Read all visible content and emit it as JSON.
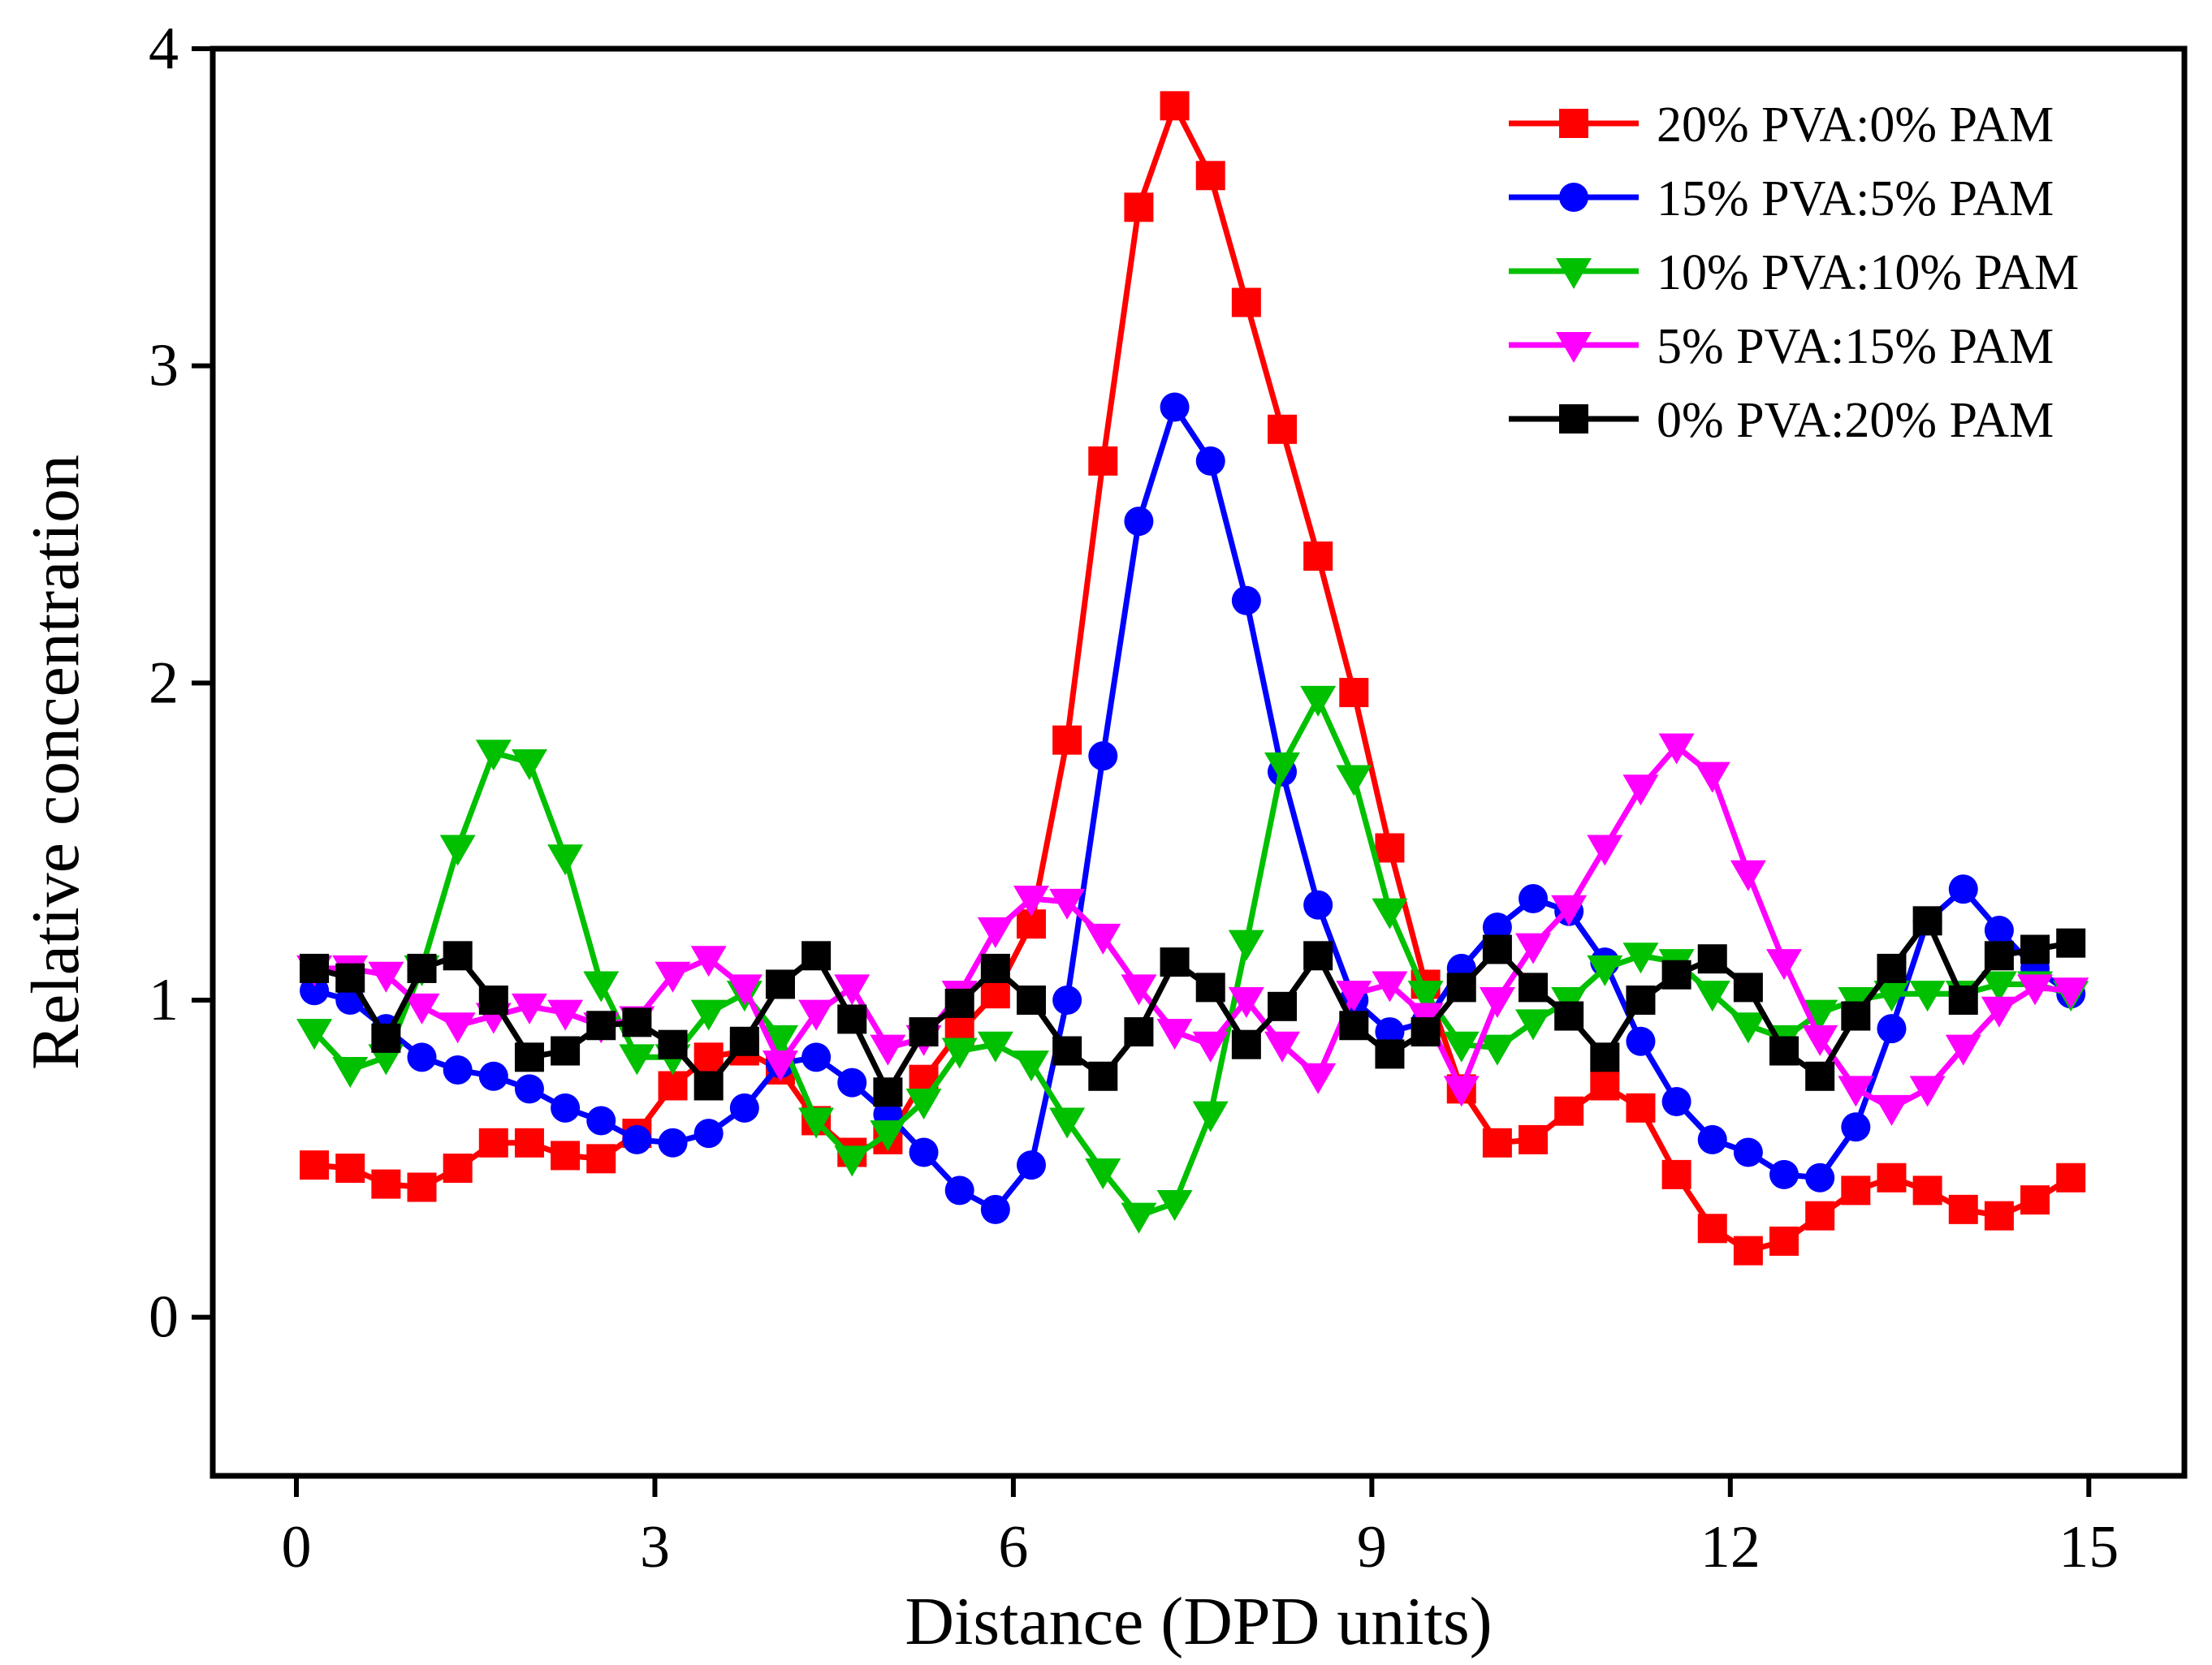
{
  "chart_data": {
    "type": "line",
    "title": "",
    "xlabel": "Distance (DPD units)",
    "ylabel": "Relative concentration",
    "xlim": [
      -0.7,
      15.8
    ],
    "ylim": [
      -0.5,
      4
    ],
    "xticks": [
      0,
      3,
      6,
      9,
      12,
      15
    ],
    "yticks": [
      0,
      1,
      2,
      3,
      4
    ],
    "grid": false,
    "legend_position": "top-right",
    "series": [
      {
        "name": "20% PVA:0% PAM",
        "color": "#ff0000",
        "marker": "square",
        "x": [
          0.15,
          0.45,
          0.75,
          1.05,
          1.35,
          1.65,
          1.95,
          2.25,
          2.55,
          2.85,
          3.15,
          3.45,
          3.75,
          4.05,
          4.35,
          4.65,
          4.95,
          5.25,
          5.55,
          5.85,
          6.15,
          6.45,
          6.75,
          7.05,
          7.35,
          7.65,
          7.95,
          8.25,
          8.55,
          8.85,
          9.15,
          9.45,
          9.75,
          10.05,
          10.35,
          10.65,
          10.95,
          11.25,
          11.55,
          11.85,
          12.15,
          12.45,
          12.75,
          13.05,
          13.35,
          13.65,
          13.95,
          14.25,
          14.55,
          14.85
        ],
        "y": [
          0.48,
          0.47,
          0.42,
          0.41,
          0.47,
          0.55,
          0.55,
          0.51,
          0.5,
          0.58,
          0.73,
          0.82,
          0.84,
          0.78,
          0.62,
          0.52,
          0.56,
          0.75,
          0.9,
          1.02,
          1.24,
          1.82,
          2.7,
          3.5,
          3.82,
          3.6,
          3.2,
          2.8,
          2.4,
          1.97,
          1.48,
          1.05,
          0.72,
          0.55,
          0.56,
          0.65,
          0.73,
          0.66,
          0.45,
          0.28,
          0.21,
          0.24,
          0.32,
          0.4,
          0.44,
          0.4,
          0.34,
          0.32,
          0.37,
          0.44
        ]
      },
      {
        "name": "15% PVA:5% PAM",
        "color": "#0000ff",
        "marker": "circle",
        "x": [
          0.15,
          0.45,
          0.75,
          1.05,
          1.35,
          1.65,
          1.95,
          2.25,
          2.55,
          2.85,
          3.15,
          3.45,
          3.75,
          4.05,
          4.35,
          4.65,
          4.95,
          5.25,
          5.55,
          5.85,
          6.15,
          6.45,
          6.75,
          7.05,
          7.35,
          7.65,
          7.95,
          8.25,
          8.55,
          8.85,
          9.15,
          9.45,
          9.75,
          10.05,
          10.35,
          10.65,
          10.95,
          11.25,
          11.55,
          11.85,
          12.15,
          12.45,
          12.75,
          13.05,
          13.35,
          13.65,
          13.95,
          14.25,
          14.55,
          14.85
        ],
        "y": [
          1.03,
          1.0,
          0.91,
          0.82,
          0.78,
          0.76,
          0.72,
          0.66,
          0.62,
          0.56,
          0.55,
          0.58,
          0.66,
          0.8,
          0.82,
          0.74,
          0.64,
          0.52,
          0.4,
          0.34,
          0.48,
          1.0,
          1.77,
          2.51,
          2.87,
          2.7,
          2.26,
          1.72,
          1.3,
          1.0,
          0.9,
          0.93,
          1.1,
          1.23,
          1.32,
          1.28,
          1.12,
          0.87,
          0.68,
          0.56,
          0.52,
          0.45,
          0.44,
          0.6,
          0.91,
          1.25,
          1.35,
          1.22,
          1.1,
          1.02
        ]
      },
      {
        "name": "10% PVA:10% PAM",
        "color": "#00c000",
        "marker": "triangle-down",
        "x": [
          0.15,
          0.45,
          0.75,
          1.05,
          1.35,
          1.65,
          1.95,
          2.25,
          2.55,
          2.85,
          3.15,
          3.45,
          3.75,
          4.05,
          4.35,
          4.65,
          4.95,
          5.25,
          5.55,
          5.85,
          6.15,
          6.45,
          6.75,
          7.05,
          7.35,
          7.65,
          7.95,
          8.25,
          8.55,
          8.85,
          9.15,
          9.45,
          9.75,
          10.05,
          10.35,
          10.65,
          10.95,
          11.25,
          11.55,
          11.85,
          12.15,
          12.45,
          12.75,
          13.05,
          13.35,
          13.65,
          13.95,
          14.25,
          14.55,
          14.85
        ],
        "y": [
          0.9,
          0.78,
          0.82,
          1.1,
          1.48,
          1.78,
          1.75,
          1.45,
          1.05,
          0.82,
          0.82,
          0.96,
          1.02,
          0.88,
          0.62,
          0.5,
          0.58,
          0.68,
          0.84,
          0.86,
          0.8,
          0.62,
          0.46,
          0.32,
          0.36,
          0.64,
          1.18,
          1.74,
          1.95,
          1.7,
          1.28,
          1.02,
          0.86,
          0.85,
          0.93,
          1.0,
          1.1,
          1.14,
          1.12,
          1.02,
          0.92,
          0.88,
          0.96,
          1.0,
          1.02,
          1.02,
          1.02,
          1.05,
          1.05,
          1.02
        ]
      },
      {
        "name": "5% PVA:15% PAM",
        "color": "#ff00ff",
        "marker": "triangle-down",
        "x": [
          0.15,
          0.45,
          0.75,
          1.05,
          1.35,
          1.65,
          1.95,
          2.25,
          2.55,
          2.85,
          3.15,
          3.45,
          3.75,
          4.05,
          4.35,
          4.65,
          4.95,
          5.25,
          5.55,
          5.85,
          6.15,
          6.45,
          6.75,
          7.05,
          7.35,
          7.65,
          7.95,
          8.25,
          8.55,
          8.85,
          9.15,
          9.45,
          9.75,
          10.05,
          10.35,
          10.65,
          10.95,
          11.25,
          11.55,
          11.85,
          12.15,
          12.45,
          12.75,
          13.05,
          13.35,
          13.65,
          13.95,
          14.25,
          14.55,
          14.85
        ],
        "y": [
          1.1,
          1.1,
          1.08,
          0.98,
          0.92,
          0.95,
          0.98,
          0.96,
          0.92,
          0.94,
          1.08,
          1.13,
          1.04,
          0.8,
          0.96,
          1.04,
          0.85,
          0.88,
          1.02,
          1.22,
          1.32,
          1.31,
          1.2,
          1.04,
          0.9,
          0.86,
          1.0,
          0.86,
          0.76,
          1.02,
          1.05,
          0.95,
          0.72,
          1.0,
          1.17,
          1.29,
          1.48,
          1.67,
          1.8,
          1.71,
          1.4,
          1.12,
          0.88,
          0.72,
          0.66,
          0.72,
          0.85,
          0.97,
          1.04,
          1.03
        ]
      },
      {
        "name": "0% PVA:20% PAM",
        "color": "#000000",
        "marker": "square",
        "x": [
          0.15,
          0.45,
          0.75,
          1.05,
          1.35,
          1.65,
          1.95,
          2.25,
          2.55,
          2.85,
          3.15,
          3.45,
          3.75,
          4.05,
          4.35,
          4.65,
          4.95,
          5.25,
          5.55,
          5.85,
          6.15,
          6.45,
          6.75,
          7.05,
          7.35,
          7.65,
          7.95,
          8.25,
          8.55,
          8.85,
          9.15,
          9.45,
          9.75,
          10.05,
          10.35,
          10.65,
          10.95,
          11.25,
          11.55,
          11.85,
          12.15,
          12.45,
          12.75,
          13.05,
          13.35,
          13.65,
          13.95,
          14.25,
          14.55,
          14.85
        ],
        "y": [
          1.1,
          1.07,
          0.88,
          1.1,
          1.14,
          1.0,
          0.82,
          0.84,
          0.92,
          0.93,
          0.86,
          0.73,
          0.87,
          1.05,
          1.14,
          0.94,
          0.71,
          0.9,
          0.99,
          1.1,
          1.0,
          0.84,
          0.76,
          0.9,
          1.12,
          1.04,
          0.86,
          0.98,
          1.14,
          0.92,
          0.83,
          0.9,
          1.04,
          1.16,
          1.04,
          0.95,
          0.82,
          1.0,
          1.08,
          1.13,
          1.04,
          0.84,
          0.76,
          0.95,
          1.1,
          1.25,
          1.0,
          1.14,
          1.16,
          1.18
        ]
      }
    ]
  }
}
